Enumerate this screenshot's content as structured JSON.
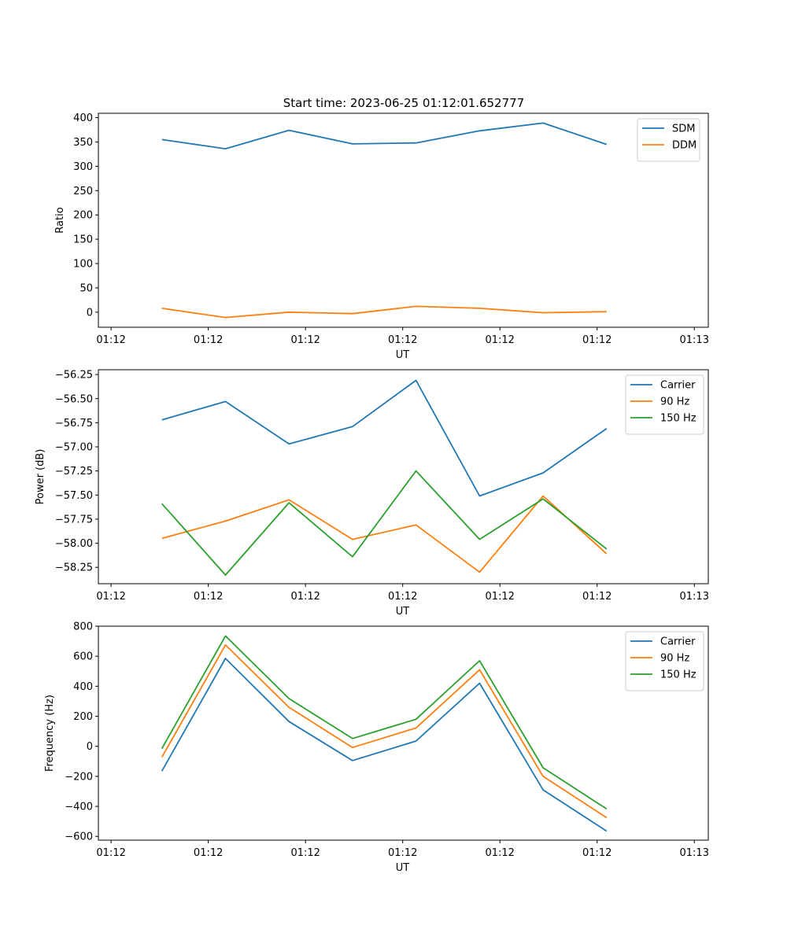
{
  "figure": {
    "title": "Start time: 2023-06-25 01:12:01.652777"
  },
  "chart_data": [
    {
      "type": "line",
      "title": "Start time: 2023-06-25 01:12:01.652777",
      "xlabel": "UT",
      "ylabel": "Ratio",
      "x": [
        1,
        2,
        3,
        4,
        5,
        6,
        7,
        8
      ],
      "xticks": [
        {
          "v": 0.2,
          "label": "01:12"
        },
        {
          "v": 1.73,
          "label": "01:12"
        },
        {
          "v": 3.26,
          "label": "01:12"
        },
        {
          "v": 4.79,
          "label": "01:12"
        },
        {
          "v": 6.32,
          "label": "01:12"
        },
        {
          "v": 7.85,
          "label": "01:12"
        },
        {
          "v": 9.38,
          "label": "01:13"
        }
      ],
      "xlim": [
        0,
        9.6
      ],
      "ylim": [
        -31,
        409
      ],
      "yticks": [
        0,
        50,
        100,
        150,
        200,
        250,
        300,
        350,
        400
      ],
      "legend_position": "top-right",
      "series": [
        {
          "name": "SDM",
          "color": "#1f77b4",
          "values": [
            355,
            336,
            374,
            346,
            348,
            373,
            389,
            345
          ]
        },
        {
          "name": "DDM",
          "color": "#ff7f0e",
          "values": [
            8,
            -11,
            0,
            -3,
            12,
            8,
            -1,
            1
          ]
        }
      ]
    },
    {
      "type": "line",
      "xlabel": "UT",
      "ylabel": "Power (dB)",
      "x": [
        1,
        2,
        3,
        4,
        5,
        6,
        7,
        8
      ],
      "xticks": [
        {
          "v": 0.2,
          "label": "01:12"
        },
        {
          "v": 1.73,
          "label": "01:12"
        },
        {
          "v": 3.26,
          "label": "01:12"
        },
        {
          "v": 4.79,
          "label": "01:12"
        },
        {
          "v": 6.32,
          "label": "01:12"
        },
        {
          "v": 7.85,
          "label": "01:12"
        },
        {
          "v": 9.38,
          "label": "01:13"
        }
      ],
      "xlim": [
        0,
        9.6
      ],
      "ylim": [
        -58.42,
        -56.2
      ],
      "yticks": [
        -58.25,
        -58.0,
        -57.75,
        -57.5,
        -57.25,
        -57.0,
        -56.75,
        -56.5,
        -56.25
      ],
      "ytick_labels": [
        "−58.25",
        "−58.00",
        "−57.75",
        "−57.50",
        "−57.25",
        "−57.00",
        "−56.75",
        "−56.50",
        "−56.25"
      ],
      "legend_position": "top-right",
      "series": [
        {
          "name": "Carrier",
          "color": "#1f77b4",
          "values": [
            -56.72,
            -56.53,
            -56.97,
            -56.79,
            -56.31,
            -57.51,
            -57.27,
            -56.81
          ]
        },
        {
          "name": "90 Hz",
          "color": "#ff7f0e",
          "values": [
            -57.95,
            -57.77,
            -57.55,
            -57.96,
            -57.81,
            -58.3,
            -57.51,
            -58.11
          ]
        },
        {
          "name": "150 Hz",
          "color": "#2ca02c",
          "values": [
            -57.59,
            -58.33,
            -57.58,
            -58.14,
            -57.25,
            -57.96,
            -57.54,
            -58.06
          ]
        }
      ]
    },
    {
      "type": "line",
      "xlabel": "UT",
      "ylabel": "Frequency (Hz)",
      "x": [
        1,
        2,
        3,
        4,
        5,
        6,
        7,
        8
      ],
      "xticks": [
        {
          "v": 0.2,
          "label": "01:12"
        },
        {
          "v": 1.73,
          "label": "01:12"
        },
        {
          "v": 3.26,
          "label": "01:12"
        },
        {
          "v": 4.79,
          "label": "01:12"
        },
        {
          "v": 6.32,
          "label": "01:12"
        },
        {
          "v": 7.85,
          "label": "01:12"
        },
        {
          "v": 9.38,
          "label": "01:13"
        }
      ],
      "xlim": [
        0,
        9.6
      ],
      "ylim": [
        -625,
        800
      ],
      "yticks": [
        -600,
        -400,
        -200,
        0,
        200,
        400,
        600,
        800
      ],
      "ytick_labels": [
        "−600",
        "−400",
        "−200",
        "0",
        "200",
        "400",
        "600",
        "800"
      ],
      "legend_position": "top-right",
      "series": [
        {
          "name": "Carrier",
          "color": "#1f77b4",
          "values": [
            -165,
            585,
            165,
            -95,
            35,
            420,
            -290,
            -565
          ]
        },
        {
          "name": "90 Hz",
          "color": "#ff7f0e",
          "values": [
            -72,
            675,
            260,
            -8,
            122,
            510,
            -200,
            -475
          ]
        },
        {
          "name": "150 Hz",
          "color": "#2ca02c",
          "values": [
            -15,
            735,
            318,
            52,
            180,
            570,
            -143,
            -417
          ]
        }
      ]
    }
  ]
}
